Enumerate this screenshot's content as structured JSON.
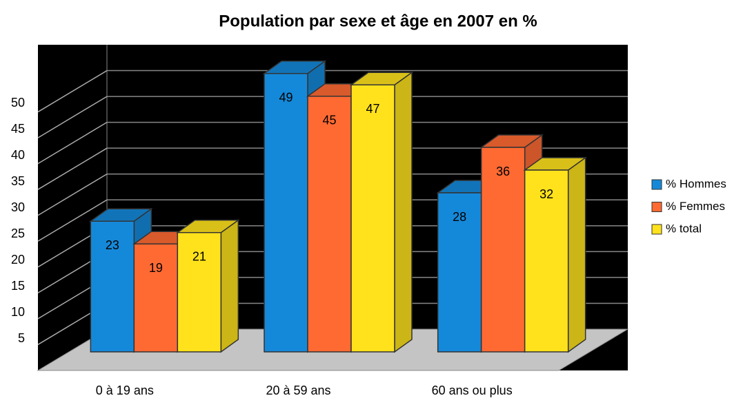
{
  "chart_data": {
    "type": "bar3d",
    "title": "Population par sexe et âge en 2007 en %",
    "categories": [
      "0 à 19 ans",
      "20 à 59 ans",
      "60 ans ou plus"
    ],
    "series": [
      {
        "name": "% Hommes",
        "color": "#1589d9",
        "values": [
          23,
          49,
          28
        ]
      },
      {
        "name": "% Femmes",
        "color": "#ff6a33",
        "values": [
          19,
          45,
          36
        ]
      },
      {
        "name": "% total",
        "color": "#ffe21c",
        "values": [
          21,
          47,
          32
        ]
      }
    ],
    "ylim": [
      0,
      55
    ],
    "yticks": [
      5,
      10,
      15,
      20,
      25,
      30,
      35,
      40,
      45,
      50
    ],
    "grid": true,
    "legend": "right"
  }
}
